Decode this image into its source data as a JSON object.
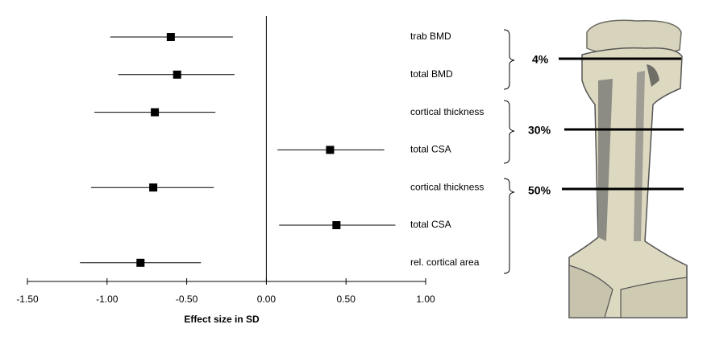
{
  "chart_data": {
    "type": "forest",
    "categories": [
      "trab BMD",
      "total BMD",
      "cortical thickness",
      "total CSA",
      "cortical thickness",
      "total CSA",
      "rel. cortical area"
    ],
    "values": [
      -0.6,
      -0.56,
      -0.7,
      0.4,
      -0.71,
      0.44,
      -0.79
    ],
    "lower": [
      -0.98,
      -0.93,
      -1.08,
      0.07,
      -1.1,
      0.08,
      -1.17
    ],
    "upper": [
      -0.21,
      -0.2,
      -0.32,
      0.74,
      -0.33,
      0.81,
      -0.41
    ],
    "color": "#000000",
    "xlim": [
      -1.5,
      1.0
    ],
    "xticks": [
      {
        "value": -1.5,
        "label": "-1.50"
      },
      {
        "value": -1.0,
        "label": "-1.00"
      },
      {
        "value": -0.5,
        "label": "-0.50"
      },
      {
        "value": 0,
        "label": "0.00"
      },
      {
        "value": 0.5,
        "label": "0.50"
      },
      {
        "value": 1.0,
        "label": "1.00"
      }
    ],
    "xlabel": "Effect size in SD",
    "groups": [
      "4%",
      "30%",
      "50%"
    ]
  }
}
